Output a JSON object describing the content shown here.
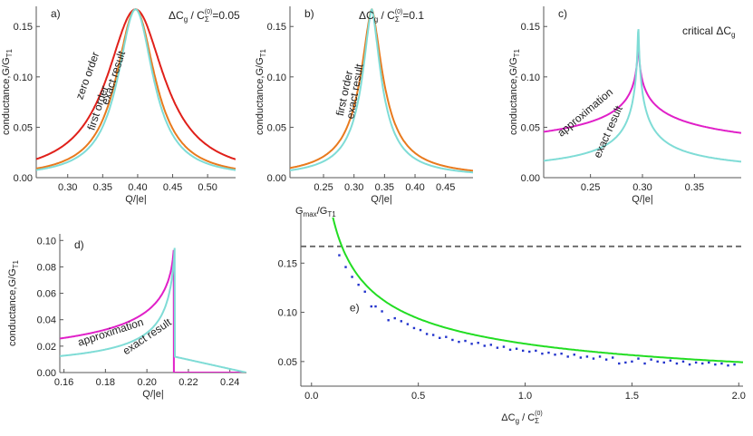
{
  "figure": {
    "colors": {
      "zero_order": "#e0201a",
      "first_order": "#e87a1e",
      "exact": "#7fdcd6",
      "approximation": "#e020c8",
      "fit": "#22dd22",
      "points": "#2233cc",
      "dashed": "#666666",
      "axis": "#555555"
    }
  },
  "chart_data": [
    {
      "id": "a",
      "type": "line",
      "panel_label": "a)",
      "annotation": "ΔCg / CΣ(0)=0.05",
      "annotation_parts": {
        "delta": "ΔC",
        "sub_g": "g",
        "slash": " / C",
        "sub_sigma": "Σ",
        "sup0": "(0)",
        "value": "=0.05"
      },
      "xlabel": "Q/|e|",
      "ylabel": "conductance,G/GT1",
      "ylabel_parts": {
        "main": "conductance,G/G",
        "sub": "T1"
      },
      "xlim": [
        0.255,
        0.54
      ],
      "ylim": [
        0,
        0.17
      ],
      "xticks": [
        "0.30",
        "0.35",
        "0.40",
        "0.45",
        "0.50"
      ],
      "xtick_values": [
        0.3,
        0.35,
        0.4,
        0.45,
        0.5
      ],
      "yticks": [
        "0.00",
        "0.05",
        "0.10",
        "0.15"
      ],
      "ytick_values": [
        0,
        0.05,
        0.1,
        0.15
      ],
      "series": [
        {
          "name": "zero order",
          "key": "zero_order",
          "model": "lorentz",
          "center": 0.397,
          "amp": 0.167,
          "width": 0.05,
          "power": 1.6
        },
        {
          "name": "first order",
          "key": "first_order",
          "model": "lorentz",
          "center": 0.397,
          "amp": 0.167,
          "width": 0.034,
          "power": 1.6
        },
        {
          "name": "exact result",
          "key": "exact",
          "model": "lorentz",
          "center": 0.397,
          "amp": 0.167,
          "width": 0.031,
          "power": 1.6
        }
      ],
      "curve_labels": [
        {
          "text": "zero order",
          "x": 0.333,
          "y": 0.1,
          "angle": -70
        },
        {
          "text": "first order",
          "x": 0.348,
          "y": 0.068,
          "angle": -72
        },
        {
          "text": "exact result",
          "x": 0.37,
          "y": 0.098,
          "angle": -72
        }
      ]
    },
    {
      "id": "b",
      "type": "line",
      "panel_label": "b)",
      "annotation": "ΔCg / CΣ(0)=0.1",
      "annotation_parts": {
        "delta": "ΔC",
        "sub_g": "g",
        "slash": " / C",
        "sub_sigma": "Σ",
        "sup0": "(0)",
        "value": "=0.1"
      },
      "xlabel": "Q/|e|",
      "ylabel": "conductance,G/GT1",
      "ylabel_parts": {
        "main": "conductance,G/G",
        "sub": "T1"
      },
      "xlim": [
        0.195,
        0.495
      ],
      "ylim": [
        0,
        0.17
      ],
      "xticks": [
        "0.25",
        "0.30",
        "0.35",
        "0.40",
        "0.45"
      ],
      "xtick_values": [
        0.25,
        0.3,
        0.35,
        0.4,
        0.45
      ],
      "yticks": [
        "0.00",
        "0.05",
        "0.10",
        "0.15"
      ],
      "ytick_values": [
        0,
        0.05,
        0.1,
        0.15
      ],
      "series": [
        {
          "name": "first order",
          "key": "first_order",
          "model": "lorentz",
          "center": 0.329,
          "amp": 0.167,
          "width": 0.024,
          "power": 1.3
        },
        {
          "name": "exact result",
          "key": "exact",
          "model": "lorentz",
          "center": 0.329,
          "amp": 0.167,
          "width": 0.02,
          "power": 1.3
        }
      ],
      "curve_labels": [
        {
          "text": "first order",
          "x": 0.29,
          "y": 0.083,
          "angle": -78
        },
        {
          "text": "exact result",
          "x": 0.307,
          "y": 0.085,
          "angle": -80
        }
      ]
    },
    {
      "id": "c",
      "type": "line",
      "panel_label": "c)",
      "annotation": "critical ΔCg",
      "annotation_parts": {
        "text": "critical ΔC",
        "sub": "g"
      },
      "xlabel": "Q/|e|",
      "ylabel": "conductance,G/GT1",
      "ylabel_parts": {
        "main": "conductance,G/G",
        "sub": "T1"
      },
      "xlim": [
        0.205,
        0.395
      ],
      "ylim": [
        0,
        0.17
      ],
      "xticks": [
        "0.25",
        "0.30",
        "0.35"
      ],
      "xtick_values": [
        0.25,
        0.3,
        0.35
      ],
      "yticks": [
        "0.00",
        "0.05",
        "0.10",
        "0.15"
      ],
      "ytick_values": [
        0,
        0.05,
        0.1,
        0.15
      ],
      "series": [
        {
          "name": "approximation",
          "key": "approximation",
          "model": "cusp",
          "center": 0.296,
          "amp": 0.163,
          "width": 0.0095,
          "power": 0.42
        },
        {
          "name": "exact result",
          "key": "exact",
          "model": "cusp",
          "center": 0.296,
          "amp": 0.163,
          "width": 0.0045,
          "power": 0.72
        }
      ],
      "curve_labels": [
        {
          "text": "approximation",
          "x": 0.247,
          "y": 0.062,
          "angle": -40
        },
        {
          "text": "exact result",
          "x": 0.27,
          "y": 0.044,
          "angle": -66
        }
      ]
    },
    {
      "id": "d",
      "type": "line",
      "panel_label": "d)",
      "xlabel": "Q/|e|",
      "ylabel": "conductance,G/GT1",
      "ylabel_parts": {
        "main": "conductance,G/G",
        "sub": "T1"
      },
      "xlim": [
        0.158,
        0.248
      ],
      "ylim": [
        0,
        0.105
      ],
      "xticks": [
        "0.16",
        "0.18",
        "0.20",
        "0.22",
        "0.24"
      ],
      "xtick_values": [
        0.16,
        0.18,
        0.2,
        0.22,
        0.24
      ],
      "yticks": [
        "0.00",
        "0.02",
        "0.04",
        "0.06",
        "0.08",
        "0.10"
      ],
      "ytick_values": [
        0,
        0.02,
        0.04,
        0.06,
        0.08,
        0.1
      ],
      "series": [
        {
          "name": "approximation",
          "key": "approximation",
          "model": "step_left",
          "center": 0.213,
          "amp": 0.097,
          "width": 0.0115,
          "power": 0.65,
          "right_start": 0.0,
          "right_end": 0.0
        },
        {
          "name": "exact result",
          "key": "exact",
          "model": "step_left",
          "center": 0.2135,
          "amp": 0.101,
          "width": 0.0045,
          "power": 0.78,
          "right_start": 0.012,
          "right_end": 0.0
        }
      ],
      "curve_labels": [
        {
          "text": "approximation",
          "x": 0.183,
          "y": 0.028,
          "angle": -18
        },
        {
          "text": "exact result",
          "x": 0.201,
          "y": 0.025,
          "angle": -34
        }
      ]
    },
    {
      "id": "e",
      "type": "line",
      "panel_label": "e)",
      "xlabel": "ΔCg / CΣ(0)",
      "xlabel_parts": {
        "delta": "ΔC",
        "sub_g": "g",
        "slash": " / C",
        "sub_sigma": "Σ",
        "sup0": "(0)"
      },
      "ylabel": "Gmax/GT1",
      "ylabel_parts": {
        "g": "G",
        "sub_max": "max",
        "slash": "/G",
        "sub_t1": "T1"
      },
      "xlim": [
        -0.05,
        2.02
      ],
      "ylim": [
        0.025,
        0.2
      ],
      "xticks": [
        "0.0",
        "0.5",
        "1.0",
        "1.5",
        "2.0"
      ],
      "xtick_values": [
        0.0,
        0.5,
        1.0,
        1.5,
        2.0
      ],
      "yticks": [
        "0.05",
        "0.10",
        "0.15"
      ],
      "ytick_values": [
        0.05,
        0.1,
        0.15
      ],
      "reference_line": 0.167,
      "fit": {
        "model": "power",
        "a": 0.0495,
        "p": 0.46
      },
      "points": [
        [
          0.13,
          0.158
        ],
        [
          0.16,
          0.146
        ],
        [
          0.19,
          0.136
        ],
        [
          0.22,
          0.128
        ],
        [
          0.25,
          0.121
        ],
        [
          0.28,
          0.106
        ],
        [
          0.3,
          0.106
        ],
        [
          0.33,
          0.101
        ],
        [
          0.36,
          0.092
        ],
        [
          0.39,
          0.094
        ],
        [
          0.42,
          0.091
        ],
        [
          0.45,
          0.088
        ],
        [
          0.48,
          0.084
        ],
        [
          0.51,
          0.082
        ],
        [
          0.54,
          0.078
        ],
        [
          0.57,
          0.077
        ],
        [
          0.6,
          0.074
        ],
        [
          0.63,
          0.075
        ],
        [
          0.66,
          0.072
        ],
        [
          0.69,
          0.07
        ],
        [
          0.72,
          0.071
        ],
        [
          0.75,
          0.068
        ],
        [
          0.78,
          0.069
        ],
        [
          0.81,
          0.066
        ],
        [
          0.84,
          0.067
        ],
        [
          0.87,
          0.064
        ],
        [
          0.9,
          0.065
        ],
        [
          0.93,
          0.062
        ],
        [
          0.96,
          0.063
        ],
        [
          0.99,
          0.061
        ],
        [
          1.02,
          0.06
        ],
        [
          1.05,
          0.061
        ],
        [
          1.08,
          0.058
        ],
        [
          1.11,
          0.059
        ],
        [
          1.14,
          0.057
        ],
        [
          1.17,
          0.058
        ],
        [
          1.2,
          0.055
        ],
        [
          1.23,
          0.057
        ],
        [
          1.26,
          0.054
        ],
        [
          1.29,
          0.055
        ],
        [
          1.32,
          0.053
        ],
        [
          1.35,
          0.055
        ],
        [
          1.38,
          0.052
        ],
        [
          1.41,
          0.054
        ],
        [
          1.44,
          0.048
        ],
        [
          1.47,
          0.049
        ],
        [
          1.5,
          0.05
        ],
        [
          1.53,
          0.053
        ],
        [
          1.56,
          0.048
        ],
        [
          1.59,
          0.052
        ],
        [
          1.62,
          0.05
        ],
        [
          1.65,
          0.049
        ],
        [
          1.68,
          0.051
        ],
        [
          1.71,
          0.048
        ],
        [
          1.74,
          0.05
        ],
        [
          1.77,
          0.047
        ],
        [
          1.8,
          0.049
        ],
        [
          1.83,
          0.048
        ],
        [
          1.86,
          0.049
        ],
        [
          1.89,
          0.047
        ],
        [
          1.92,
          0.048
        ],
        [
          1.95,
          0.046
        ],
        [
          1.98,
          0.047
        ]
      ]
    }
  ]
}
